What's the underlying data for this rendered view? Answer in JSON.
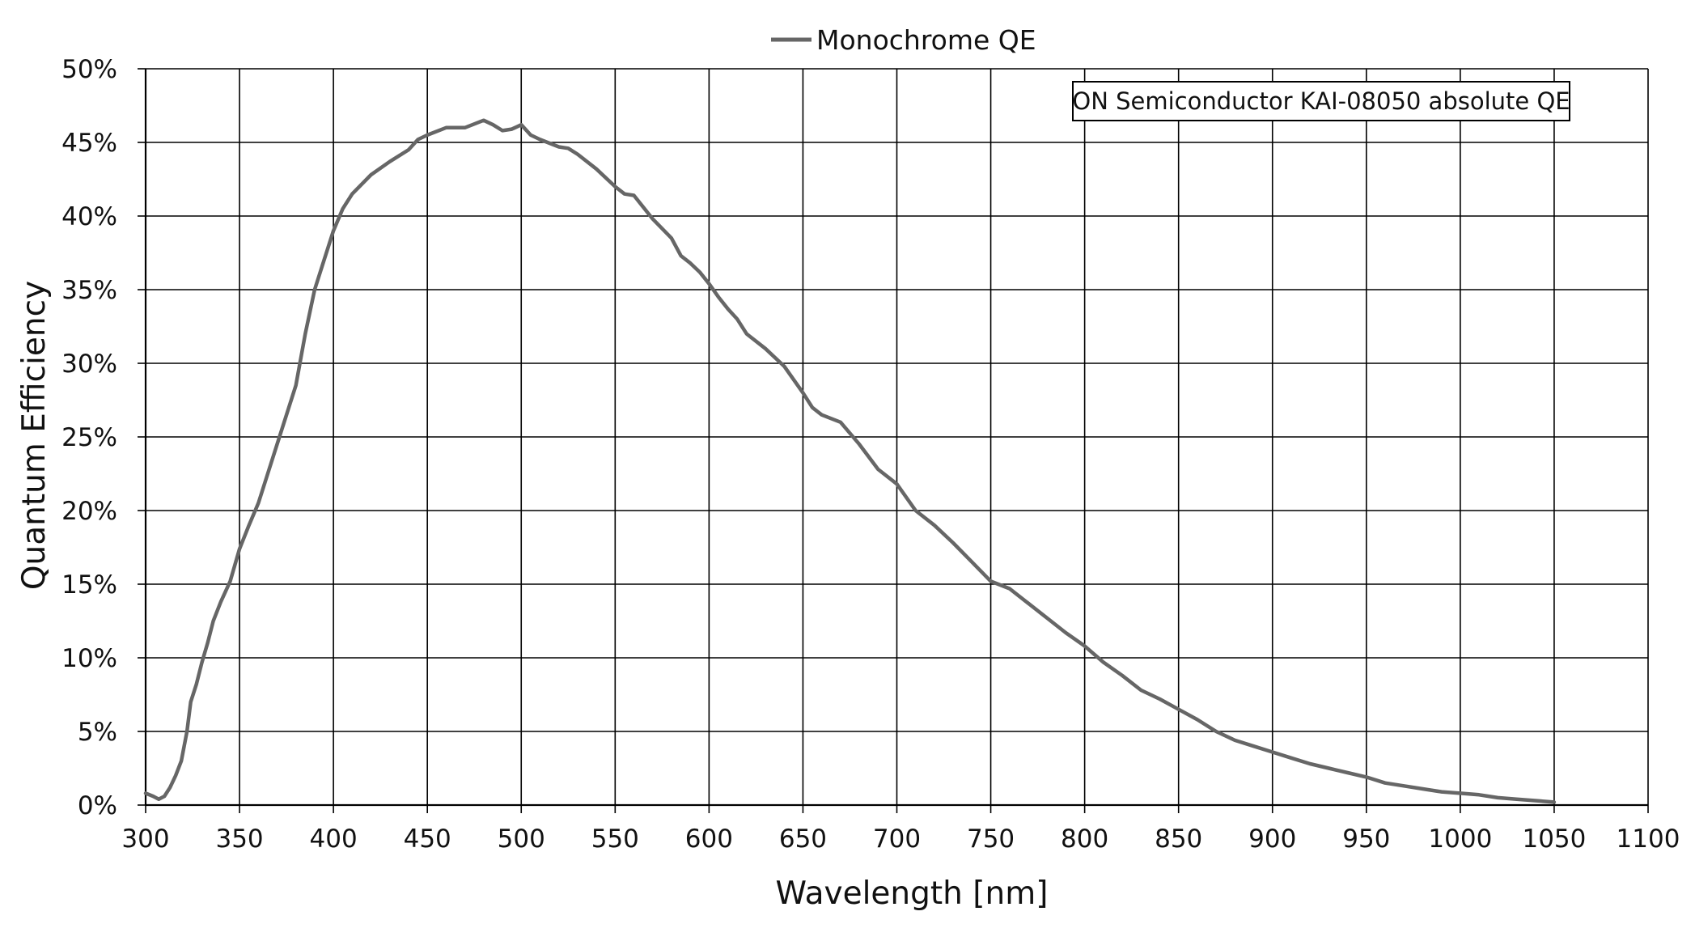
{
  "chart_data": {
    "type": "line",
    "xlabel": "Wavelength [nm]",
    "ylabel": "Quantum Efficiency",
    "xlim": [
      300,
      1100
    ],
    "ylim": [
      0,
      0.5
    ],
    "x_ticks": [
      "300",
      "350",
      "400",
      "450",
      "500",
      "550",
      "600",
      "650",
      "700",
      "750",
      "800",
      "850",
      "900",
      "950",
      "1000",
      "1050",
      "1100"
    ],
    "y_ticks": [
      "0%",
      "5%",
      "10%",
      "15%",
      "20%",
      "25%",
      "30%",
      "35%",
      "40%",
      "45%",
      "50%"
    ],
    "grid": true,
    "legend": {
      "position": "top-center",
      "entries": [
        "Monochrome QE"
      ]
    },
    "annotation": "ON Semiconductor KAI-08050 absolute QE",
    "series": [
      {
        "name": "Monochrome QE",
        "color": "#666666",
        "points": [
          [
            300,
            0.008
          ],
          [
            304,
            0.006
          ],
          [
            307,
            0.004
          ],
          [
            310,
            0.006
          ],
          [
            313,
            0.012
          ],
          [
            316,
            0.02
          ],
          [
            319,
            0.03
          ],
          [
            322,
            0.05
          ],
          [
            324,
            0.07
          ],
          [
            327,
            0.082
          ],
          [
            330,
            0.097
          ],
          [
            333,
            0.11
          ],
          [
            336,
            0.125
          ],
          [
            340,
            0.138
          ],
          [
            345,
            0.152
          ],
          [
            350,
            0.174
          ],
          [
            355,
            0.19
          ],
          [
            360,
            0.205
          ],
          [
            365,
            0.225
          ],
          [
            370,
            0.245
          ],
          [
            375,
            0.265
          ],
          [
            380,
            0.285
          ],
          [
            385,
            0.32
          ],
          [
            390,
            0.35
          ],
          [
            395,
            0.37
          ],
          [
            400,
            0.39
          ],
          [
            405,
            0.405
          ],
          [
            410,
            0.415
          ],
          [
            420,
            0.428
          ],
          [
            430,
            0.437
          ],
          [
            440,
            0.445
          ],
          [
            445,
            0.452
          ],
          [
            450,
            0.455
          ],
          [
            460,
            0.46
          ],
          [
            470,
            0.46
          ],
          [
            480,
            0.465
          ],
          [
            485,
            0.462
          ],
          [
            490,
            0.458
          ],
          [
            495,
            0.459
          ],
          [
            500,
            0.462
          ],
          [
            505,
            0.455
          ],
          [
            510,
            0.452
          ],
          [
            520,
            0.447
          ],
          [
            525,
            0.446
          ],
          [
            530,
            0.442
          ],
          [
            540,
            0.432
          ],
          [
            550,
            0.42
          ],
          [
            555,
            0.415
          ],
          [
            560,
            0.414
          ],
          [
            570,
            0.398
          ],
          [
            580,
            0.385
          ],
          [
            585,
            0.373
          ],
          [
            590,
            0.368
          ],
          [
            595,
            0.362
          ],
          [
            600,
            0.354
          ],
          [
            605,
            0.345
          ],
          [
            610,
            0.337
          ],
          [
            615,
            0.33
          ],
          [
            620,
            0.32
          ],
          [
            630,
            0.31
          ],
          [
            640,
            0.298
          ],
          [
            650,
            0.28
          ],
          [
            655,
            0.27
          ],
          [
            660,
            0.265
          ],
          [
            670,
            0.26
          ],
          [
            680,
            0.245
          ],
          [
            690,
            0.228
          ],
          [
            700,
            0.218
          ],
          [
            710,
            0.2
          ],
          [
            720,
            0.19
          ],
          [
            730,
            0.178
          ],
          [
            740,
            0.165
          ],
          [
            750,
            0.152
          ],
          [
            760,
            0.147
          ],
          [
            770,
            0.137
          ],
          [
            780,
            0.127
          ],
          [
            790,
            0.117
          ],
          [
            800,
            0.108
          ],
          [
            810,
            0.097
          ],
          [
            820,
            0.088
          ],
          [
            830,
            0.078
          ],
          [
            840,
            0.072
          ],
          [
            850,
            0.065
          ],
          [
            860,
            0.058
          ],
          [
            870,
            0.05
          ],
          [
            880,
            0.044
          ],
          [
            890,
            0.04
          ],
          [
            900,
            0.036
          ],
          [
            910,
            0.032
          ],
          [
            920,
            0.028
          ],
          [
            930,
            0.025
          ],
          [
            940,
            0.022
          ],
          [
            950,
            0.019
          ],
          [
            960,
            0.015
          ],
          [
            970,
            0.013
          ],
          [
            980,
            0.011
          ],
          [
            990,
            0.009
          ],
          [
            1000,
            0.008
          ],
          [
            1010,
            0.007
          ],
          [
            1020,
            0.005
          ],
          [
            1030,
            0.004
          ],
          [
            1040,
            0.003
          ],
          [
            1050,
            0.002
          ]
        ]
      }
    ]
  }
}
